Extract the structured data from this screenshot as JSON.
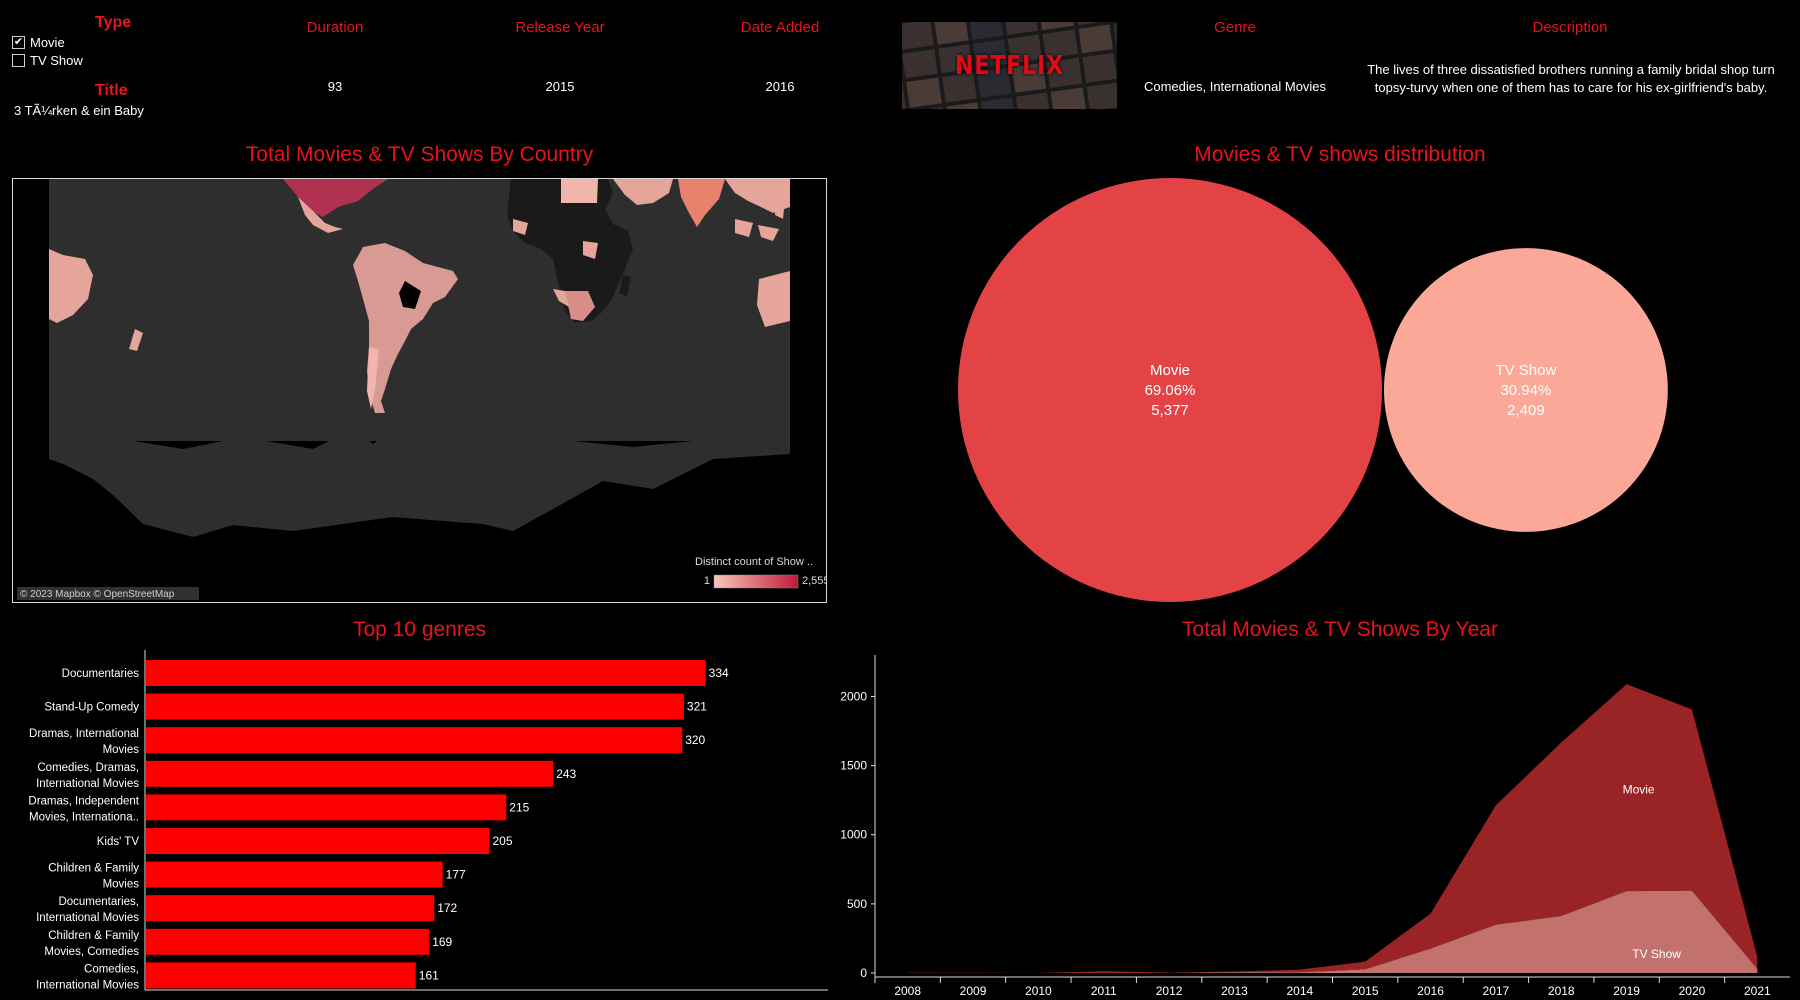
{
  "header": {
    "type_label": "Type",
    "type_options": [
      {
        "label": "Movie",
        "checked": true
      },
      {
        "label": "TV Show",
        "checked": false
      }
    ],
    "title_label": "Title",
    "title_value": "3 TÃ¼rken & ein Baby",
    "duration_label": "Duration",
    "duration_value": "93",
    "release_year_label": "Release Year",
    "release_year_value": "2015",
    "date_added_label": "Date Added",
    "date_added_value": "2016",
    "genre_label": "Genre",
    "genre_value": "Comedies, International Movies",
    "description_label": "Description",
    "description_value": "The lives of three dissatisfied brothers running a family bridal shop turn topsy-turvy when one of them has to care for his ex-girlfriend's baby.",
    "logo_text": "NETFLIX"
  },
  "map": {
    "title": "Total Movies & TV Shows By Country",
    "legend_title": "Distinct count of Show ..",
    "legend_min": "1",
    "legend_max": "2,555",
    "attribution": "© 2023 Mapbox © OpenStreetMap",
    "colors": {
      "low": "#f7c7bb",
      "high": "#c21a3a",
      "land": "#2e2e2e",
      "no_data": "#111111"
    }
  },
  "chart_data": [
    {
      "type": "pie",
      "title": "Movies & TV shows distribution",
      "categories": [
        "Movie",
        "TV Show"
      ],
      "values": [
        5377,
        2409
      ],
      "percent_labels": [
        "69.06%",
        "30.94%"
      ],
      "count_labels": [
        "5,377",
        "2,409"
      ],
      "colors": [
        "#e44346",
        "#fca898"
      ]
    },
    {
      "type": "bar",
      "title": "Top 10 genres",
      "categories": [
        [
          "Documentaries"
        ],
        [
          "Stand-Up Comedy"
        ],
        [
          "Dramas, International",
          "Movies"
        ],
        [
          "Comedies, Dramas,",
          "International Movies"
        ],
        [
          "Dramas, Independent",
          "Movies, Internationa.."
        ],
        [
          "Kids' TV"
        ],
        [
          "Children & Family",
          "Movies"
        ],
        [
          "Documentaries,",
          "International Movies"
        ],
        [
          "Children & Family",
          "Movies, Comedies"
        ],
        [
          "Comedies,",
          "International Movies"
        ]
      ],
      "values": [
        334,
        321,
        320,
        243,
        215,
        205,
        177,
        172,
        169,
        161
      ],
      "value_labels": [
        "334",
        "321",
        "320",
        "243",
        "215",
        "205",
        "177",
        "172",
        "169",
        "161"
      ],
      "xlim": [
        0,
        370
      ],
      "color": "#ff0000"
    },
    {
      "type": "area",
      "title": "Total Movies & TV Shows By Year",
      "x": [
        "2008",
        "2009",
        "2010",
        "2011",
        "2012",
        "2013",
        "2014",
        "2015",
        "2016",
        "2017",
        "2018",
        "2019",
        "2020",
        "2021"
      ],
      "series": [
        {
          "name": "Movie",
          "values": [
            1,
            2,
            1,
            13,
            3,
            6,
            19,
            56,
            253,
            864,
            1255,
            1497,
            1312,
            88
          ],
          "color": "#9a2326"
        },
        {
          "name": "TV Show",
          "values": [
            1,
            0,
            0,
            0,
            0,
            5,
            5,
            26,
            176,
            349,
            412,
            592,
            595,
            29
          ],
          "color": "#c3716d"
        }
      ],
      "stacked": true,
      "yticks": [
        "0",
        "500",
        "1000",
        "1500",
        "2000"
      ],
      "ylim": [
        0,
        2300
      ]
    }
  ]
}
